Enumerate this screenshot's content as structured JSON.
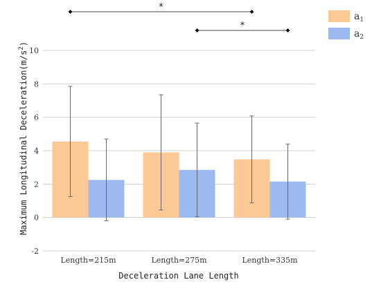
{
  "chart_data": {
    "type": "bar",
    "categories": [
      "Length=215m",
      "Length=275m",
      "Length=335m"
    ],
    "series": [
      {
        "name": "a1",
        "name_base": "a",
        "name_sub": "1",
        "color": "#FCC896",
        "values": [
          4.55,
          3.9,
          3.48
        ],
        "error": [
          3.3,
          3.45,
          2.6
        ]
      },
      {
        "name": "a2",
        "name_base": "a",
        "name_sub": "2",
        "color": "#9DBAF0",
        "values": [
          2.25,
          2.85,
          2.15
        ],
        "error": [
          2.45,
          2.8,
          2.25
        ]
      }
    ],
    "xlabel": "Deceleration Lane Length",
    "ylabel_main": "Maximum Longitudinal Deceleration(m/s",
    "ylabel_sup": "2",
    "ylabel_close": ")",
    "ylim": [
      -2,
      10
    ],
    "yticks": [
      -2,
      0,
      2,
      4,
      6,
      8,
      10
    ],
    "grid": true,
    "legend_position": "top-right",
    "significance": [
      {
        "label": "*",
        "from": "Length=215m:a1",
        "to": "Length=335m:a1"
      },
      {
        "label": "*",
        "from": "Length=275m:a2",
        "to": "Length=335m:a2"
      }
    ]
  }
}
